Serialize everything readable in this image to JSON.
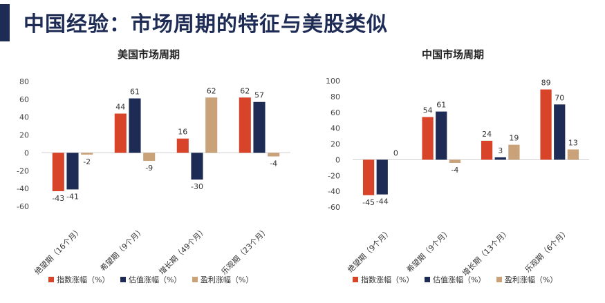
{
  "page": {
    "title": "中国经验：市场周期的特征与美股类似"
  },
  "colors": {
    "index": "#d7442a",
    "valuation": "#1d2b55",
    "earnings": "#c9a27a",
    "title": "#1d2b55"
  },
  "chart_data": [
    {
      "type": "bar",
      "title": "美国市场周期",
      "categories": [
        "绝望期（16个月）",
        "希望期（9个月）",
        "增长期（49个月）",
        "乐观期（23个月）"
      ],
      "series": [
        {
          "name": "指数涨幅（%）",
          "values": [
            -43,
            44,
            16,
            62
          ]
        },
        {
          "name": "估值涨幅（%）",
          "values": [
            -41,
            61,
            -30,
            57
          ]
        },
        {
          "name": "盈利涨幅（%）",
          "values": [
            -2,
            -9,
            62,
            -4
          ]
        }
      ],
      "yticks": [
        80,
        60,
        40,
        20,
        0,
        -20,
        -40,
        -60
      ],
      "ylim": [
        -60,
        80
      ],
      "grid": false,
      "legend": "bottom"
    },
    {
      "type": "bar",
      "title": "中国市场周期",
      "categories": [
        "绝望期（9个月）",
        "希望期（9个月）",
        "增长期（13个月）",
        "乐观期（6个月）"
      ],
      "series": [
        {
          "name": "指数涨幅（%）",
          "values": [
            -45,
            54,
            24,
            89
          ]
        },
        {
          "name": "估值涨幅（%）",
          "values": [
            -44,
            61,
            3,
            70
          ]
        },
        {
          "name": "盈利涨幅（%）",
          "values": [
            0,
            -4,
            19,
            13
          ]
        }
      ],
      "yticks": [
        100,
        80,
        60,
        40,
        20,
        0,
        -20,
        -40,
        -60
      ],
      "ylim": [
        -60,
        100
      ],
      "grid": false,
      "legend": "bottom"
    }
  ]
}
